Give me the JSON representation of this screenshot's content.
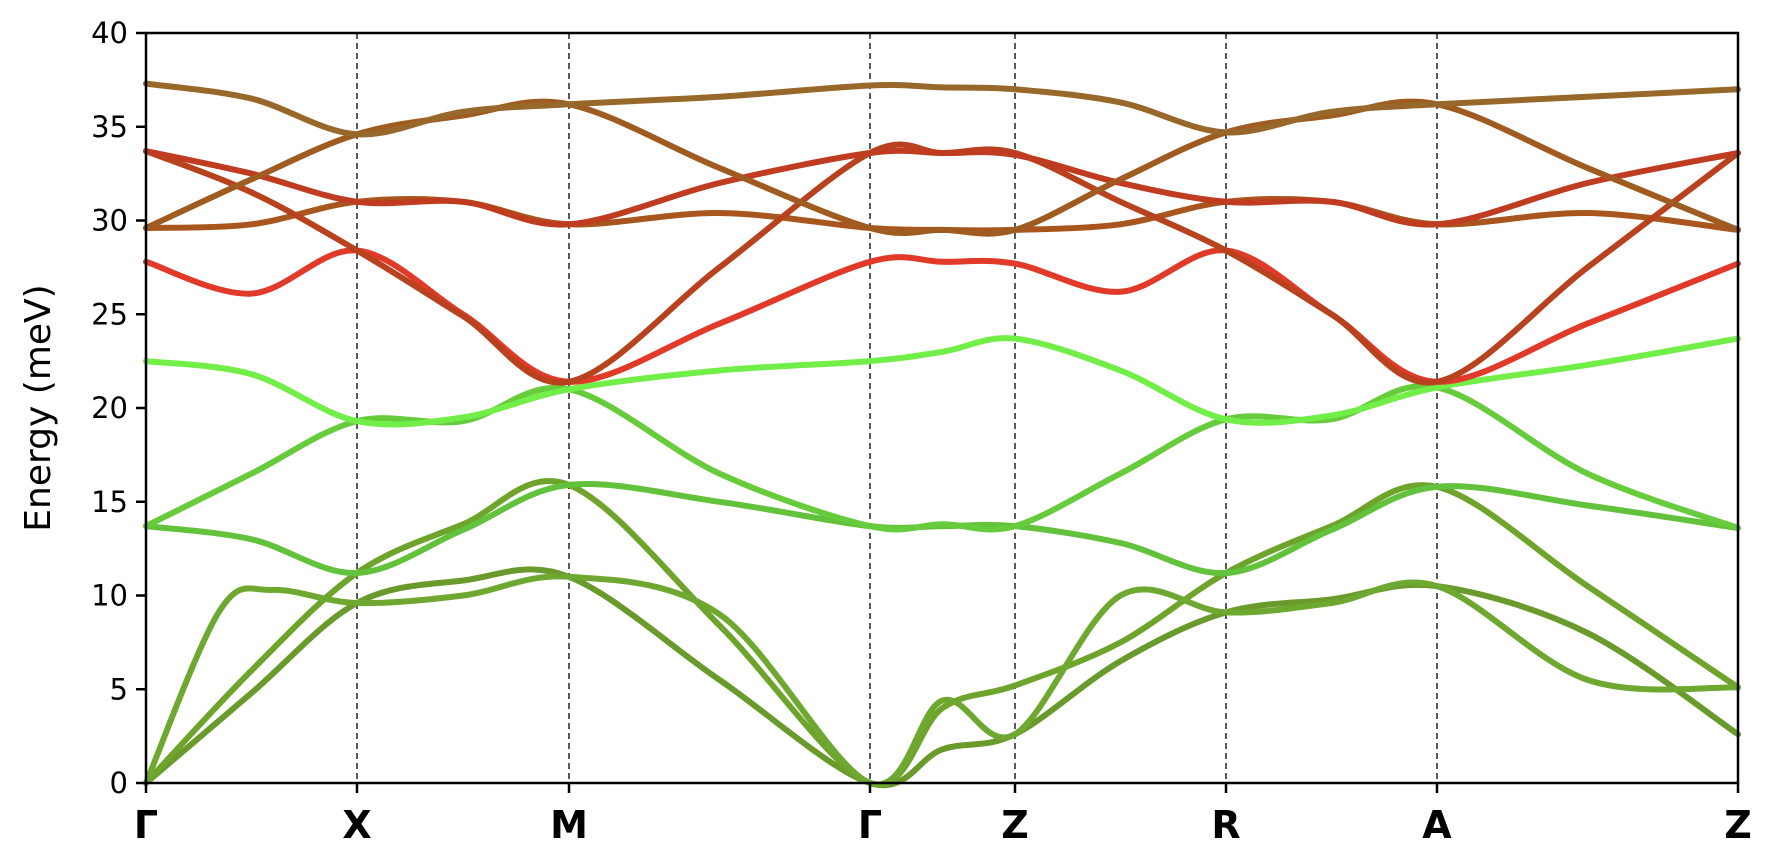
{
  "chart_data": {
    "type": "line",
    "ylabel": "Energy (meV)",
    "ylim": [
      0,
      40
    ],
    "y_ticks": [
      0,
      5,
      10,
      15,
      20,
      25,
      30,
      35,
      40
    ],
    "x_labels": [
      "Γ",
      "X",
      "M",
      "Γ",
      "Z",
      "R",
      "A",
      "Z"
    ],
    "grid": false,
    "series": [
      {
        "color": "#6b9a2c",
        "points": [
          [
            0,
            0
          ],
          [
            0.5,
            4.8
          ],
          [
            1,
            9.6
          ],
          [
            1.5,
            10.8
          ],
          [
            2,
            11
          ],
          [
            2.5,
            5.5
          ],
          [
            3,
            0
          ],
          [
            3.5,
            1.8
          ],
          [
            4,
            2.6
          ],
          [
            4.5,
            6.5
          ],
          [
            5,
            9.1
          ],
          [
            5.5,
            9.8
          ],
          [
            6,
            10.5
          ],
          [
            6.5,
            8
          ],
          [
            7,
            2.6
          ]
        ]
      },
      {
        "color": "#6fa42c",
        "points": [
          [
            0,
            0
          ],
          [
            0.5,
            6
          ],
          [
            1,
            11.2
          ],
          [
            1.5,
            13.8
          ],
          [
            2,
            15.9
          ],
          [
            2.5,
            8.4
          ],
          [
            3,
            0
          ],
          [
            3.5,
            4
          ],
          [
            4,
            5.2
          ],
          [
            4.5,
            7.5
          ],
          [
            5,
            11.2
          ],
          [
            5.5,
            13.7
          ],
          [
            6,
            15.8
          ],
          [
            6.5,
            10.5
          ],
          [
            7,
            5.1
          ]
        ]
      },
      {
        "color": "#6ea830",
        "points": [
          [
            0,
            0
          ],
          [
            0.35,
            9.2
          ],
          [
            0.6,
            10.3
          ],
          [
            1,
            9.6
          ],
          [
            1.5,
            10
          ],
          [
            2,
            11
          ],
          [
            2.5,
            9
          ],
          [
            3,
            0
          ],
          [
            3.5,
            4.4
          ],
          [
            4,
            2.6
          ],
          [
            4.5,
            10
          ],
          [
            5,
            9.1
          ],
          [
            5.5,
            9.6
          ],
          [
            6,
            10.5
          ],
          [
            6.5,
            5.5
          ],
          [
            7,
            5.1
          ]
        ]
      },
      {
        "color": "#62c23c",
        "points": [
          [
            0,
            13.7
          ],
          [
            0.5,
            13
          ],
          [
            1,
            11.2
          ],
          [
            1.5,
            13.5
          ],
          [
            2,
            15.9
          ],
          [
            2.5,
            15
          ],
          [
            3,
            13.7
          ],
          [
            3.5,
            13.7
          ],
          [
            4,
            13.7
          ],
          [
            4.5,
            12.8
          ],
          [
            5,
            11.2
          ],
          [
            5.5,
            13.5
          ],
          [
            6,
            15.8
          ],
          [
            6.5,
            14.8
          ],
          [
            7,
            13.6
          ]
        ]
      },
      {
        "color": "#66cc3c",
        "points": [
          [
            0,
            13.7
          ],
          [
            0.5,
            16.5
          ],
          [
            1,
            19.3
          ],
          [
            1.5,
            19.3
          ],
          [
            2,
            21
          ],
          [
            2.5,
            16.5
          ],
          [
            3,
            13.7
          ],
          [
            3.5,
            13.8
          ],
          [
            4,
            13.7
          ],
          [
            4.5,
            16.5
          ],
          [
            5,
            19.4
          ],
          [
            5.5,
            19.4
          ],
          [
            6,
            21.1
          ],
          [
            6.5,
            16.5
          ],
          [
            7,
            13.6
          ]
        ]
      },
      {
        "color": "#72ee48",
        "points": [
          [
            0,
            22.5
          ],
          [
            0.5,
            21.8
          ],
          [
            1,
            19.3
          ],
          [
            1.5,
            19.5
          ],
          [
            2,
            21
          ],
          [
            2.5,
            22
          ],
          [
            3,
            22.5
          ],
          [
            3.5,
            23
          ],
          [
            4,
            23.7
          ],
          [
            4.5,
            22
          ],
          [
            5,
            19.4
          ],
          [
            5.5,
            19.6
          ],
          [
            6,
            21.1
          ],
          [
            6.5,
            22.3
          ],
          [
            7,
            23.7
          ]
        ]
      },
      {
        "color": "#e23a28",
        "points": [
          [
            0,
            27.8
          ],
          [
            0.5,
            26.1
          ],
          [
            1,
            28.4
          ],
          [
            1.5,
            25
          ],
          [
            2,
            21.4
          ],
          [
            2.5,
            24.5
          ],
          [
            3,
            27.8
          ],
          [
            3.5,
            27.8
          ],
          [
            4,
            27.7
          ],
          [
            4.5,
            26.2
          ],
          [
            5,
            28.4
          ],
          [
            5.5,
            25
          ],
          [
            6,
            21.4
          ],
          [
            6.5,
            24.5
          ],
          [
            7,
            27.7
          ]
        ]
      },
      {
        "color": "#a8561e",
        "points": [
          [
            0,
            29.6
          ],
          [
            0.5,
            29.8
          ],
          [
            1,
            31
          ],
          [
            1.5,
            31
          ],
          [
            2,
            29.8
          ],
          [
            2.5,
            30.4
          ],
          [
            3,
            29.6
          ],
          [
            3.5,
            29.5
          ],
          [
            4,
            29.5
          ],
          [
            4.5,
            29.8
          ],
          [
            5,
            31
          ],
          [
            5.5,
            31
          ],
          [
            6,
            29.8
          ],
          [
            6.5,
            30.4
          ],
          [
            7,
            29.5
          ]
        ]
      },
      {
        "color": "#b8421e",
        "points": [
          [
            0,
            33.7
          ],
          [
            0.5,
            31.5
          ],
          [
            1,
            28.4
          ],
          [
            1.5,
            24.9
          ],
          [
            2,
            21.4
          ],
          [
            2.5,
            27.5
          ],
          [
            3,
            33.6
          ],
          [
            3.5,
            33.6
          ],
          [
            4,
            33.6
          ],
          [
            4.5,
            31
          ],
          [
            5,
            28.4
          ],
          [
            5.5,
            25
          ],
          [
            6,
            21.4
          ],
          [
            6.5,
            27.5
          ],
          [
            7,
            33.6
          ]
        ]
      },
      {
        "color": "#c03c20",
        "points": [
          [
            0,
            33.7
          ],
          [
            0.5,
            32.5
          ],
          [
            1,
            31
          ],
          [
            1.5,
            31
          ],
          [
            2,
            29.8
          ],
          [
            2.5,
            32
          ],
          [
            3,
            33.6
          ],
          [
            3.5,
            33.6
          ],
          [
            4,
            33.5
          ],
          [
            4.5,
            32
          ],
          [
            5,
            31
          ],
          [
            5.5,
            31
          ],
          [
            6,
            29.8
          ],
          [
            6.5,
            32
          ],
          [
            7,
            33.6
          ]
        ]
      },
      {
        "color": "#a05c20",
        "points": [
          [
            0,
            29.6
          ],
          [
            0.5,
            32.2
          ],
          [
            1,
            34.6
          ],
          [
            1.5,
            35.6
          ],
          [
            2,
            36.2
          ],
          [
            2.5,
            32.8
          ],
          [
            3,
            29.6
          ],
          [
            3.5,
            29.5
          ],
          [
            4,
            29.5
          ],
          [
            4.5,
            32.2
          ],
          [
            5,
            34.7
          ],
          [
            5.5,
            35.6
          ],
          [
            6,
            36.2
          ],
          [
            6.5,
            32.8
          ],
          [
            7,
            29.5
          ]
        ]
      },
      {
        "color": "#98682a",
        "points": [
          [
            0,
            37.3
          ],
          [
            0.5,
            36.5
          ],
          [
            1,
            34.6
          ],
          [
            1.5,
            35.8
          ],
          [
            2,
            36.2
          ],
          [
            2.5,
            36.6
          ],
          [
            3,
            37.2
          ],
          [
            3.5,
            37.1
          ],
          [
            4,
            37
          ],
          [
            4.5,
            36.3
          ],
          [
            5,
            34.7
          ],
          [
            5.5,
            35.8
          ],
          [
            6,
            36.2
          ],
          [
            6.5,
            36.6
          ],
          [
            7,
            37
          ]
        ]
      }
    ]
  }
}
